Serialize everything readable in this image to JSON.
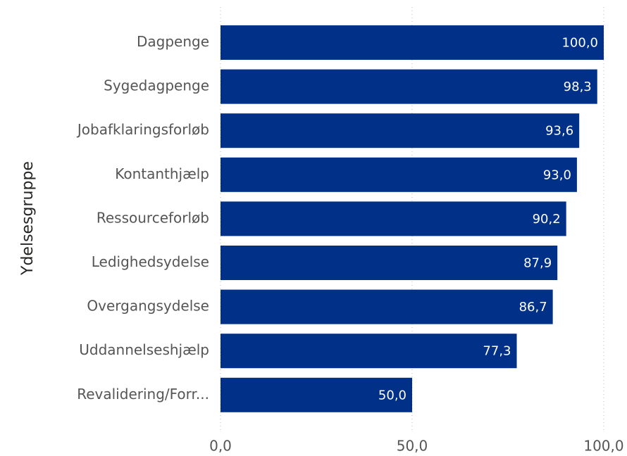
{
  "chart_data": {
    "type": "bar",
    "orientation": "horizontal",
    "y_axis_label": "Ydelsesgruppe",
    "categories": [
      "Dagpenge",
      "Sygedagpenge",
      "Jobafklaringsforløb",
      "Kontanthjælp",
      "Ressourceforløb",
      "Ledighedsydelse",
      "Overgangsydelse",
      "Uddannelseshjælp",
      "Revalidering/Forr..."
    ],
    "values": [
      100,
      98.3,
      93.6,
      93,
      90.2,
      87.9,
      86.7,
      77.3,
      50
    ],
    "value_labels": [
      "100,0",
      "98,3",
      "93,6",
      "93,0",
      "90,2",
      "87,9",
      "86,7",
      "77,3",
      "50,0"
    ],
    "color": "#003087",
    "xlim": [
      0,
      100
    ],
    "xticks": [
      {
        "value": 0,
        "label": "0,0"
      },
      {
        "value": 50,
        "label": "50,0"
      },
      {
        "value": 100,
        "label": "100,0"
      }
    ],
    "grid": true
  }
}
